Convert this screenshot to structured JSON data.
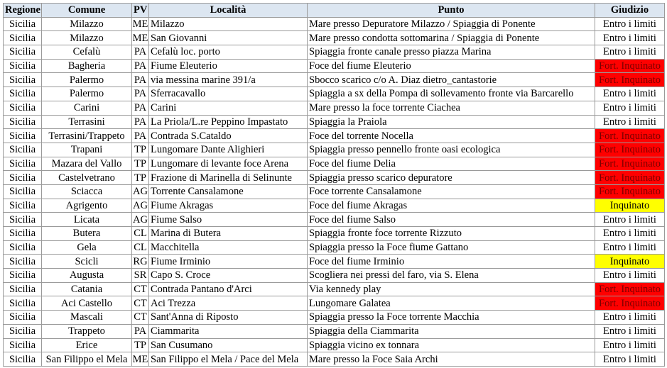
{
  "headers": [
    "Regione",
    "Comune",
    "PV",
    "Località",
    "Punto",
    "Giudizio"
  ],
  "colors": {
    "header_bg": "#dce6f1",
    "fort_inquinato": "#ff0000",
    "inquinato": "#ffff00"
  },
  "rows": [
    [
      "Sicilia",
      "Milazzo",
      "ME",
      "Milazzo",
      "Mare presso Depuratore Milazzo / Spiaggia di Ponente",
      "Entro i limiti"
    ],
    [
      "Sicilia",
      "Milazzo",
      "ME",
      "San Giovanni",
      "Mare presso condotta sottomarina / Spiaggia di Ponente",
      "Entro i limiti"
    ],
    [
      "Sicilia",
      "Cefalù",
      "PA",
      "Cefalù loc. porto",
      "Spiaggia fronte canale presso piazza Marina",
      "Entro i limiti"
    ],
    [
      "Sicilia",
      "Bagheria",
      "PA",
      "Fiume Eleuterio",
      "Foce del fiume Eleuterio",
      "Fort. Inquinato"
    ],
    [
      "Sicilia",
      "Palermo",
      "PA",
      "via messina marine 391/a",
      "Sbocco scarico c/o A. Diaz dietro_cantastorie",
      "Fort. Inquinato"
    ],
    [
      "Sicilia",
      "Palermo",
      "PA",
      "Sferracavallo",
      "Spiaggia a sx della Pompa di sollevamento fronte via Barcarello",
      "Entro i limiti"
    ],
    [
      "Sicilia",
      "Carini",
      "PA",
      "Carini",
      "Mare presso la foce torrente Ciachea",
      "Entro i limiti"
    ],
    [
      "Sicilia",
      "Terrasini",
      "PA",
      "La Priola/L.re Peppino Impastato",
      "Spiaggia la Praiola",
      "Entro i limiti"
    ],
    [
      "Sicilia",
      "Terrasini/Trappeto",
      "PA",
      "Contrada S.Cataldo",
      "Foce del torrente Nocella",
      "Fort. Inquinato"
    ],
    [
      "Sicilia",
      "Trapani",
      "TP",
      "Lungomare Dante Alighieri",
      "Spiaggia presso pennello fronte oasi ecologica",
      "Fort. Inquinato"
    ],
    [
      "Sicilia",
      "Mazara del Vallo",
      "TP",
      "Lungomare di levante foce Arena",
      "Foce del fiume Delia",
      "Fort. Inquinato"
    ],
    [
      "Sicilia",
      "Castelvetrano",
      "TP",
      "Frazione di Marinella di Selinunte",
      "Spiaggia presso scarico depuratore",
      "Fort. Inquinato"
    ],
    [
      "Sicilia",
      "Sciacca",
      "AG",
      "Torrente Cansalamone",
      "Foce torrente Cansalamone",
      "Fort. Inquinato"
    ],
    [
      "Sicilia",
      "Agrigento",
      "AG",
      "Fiume Akragas",
      "Foce del fiume Akragas",
      "Inquinato"
    ],
    [
      "Sicilia",
      "Licata",
      "AG",
      "Fiume Salso",
      "Foce del fiume Salso",
      "Entro i limiti"
    ],
    [
      "Sicilia",
      "Butera",
      "CL",
      "Marina di Butera",
      "Spiaggia fronte foce torrente Rizzuto",
      "Entro i limiti"
    ],
    [
      "Sicilia",
      "Gela",
      "CL",
      "Macchitella",
      "Spiaggia presso la Foce fiume Gattano",
      "Entro i limiti"
    ],
    [
      "Sicilia",
      "Scicli",
      "RG",
      "Fiume Irminio",
      "Foce del fiume Irminio",
      "Inquinato"
    ],
    [
      "Sicilia",
      "Augusta",
      "SR",
      "Capo S. Croce",
      "Scogliera nei pressi del faro, via S. Elena",
      "Entro i limiti"
    ],
    [
      "Sicilia",
      "Catania",
      "CT",
      "Contrada Pantano d'Arci",
      "Via kennedy play",
      "Fort. Inquinato"
    ],
    [
      "Sicilia",
      "Aci Castello",
      "CT",
      "Aci Trezza",
      "Lungomare Galatea",
      "Fort. Inquinato"
    ],
    [
      "Sicilia",
      "Mascali",
      "CT",
      "Sant'Anna di Riposto",
      "Spiaggia presso la Foce torrente Macchia",
      "Entro i limiti"
    ],
    [
      "Sicilia",
      "Trappeto",
      "PA",
      "Ciammarita",
      "Spiaggia della Ciammarita",
      "Entro i limiti"
    ],
    [
      "Sicilia",
      "Erice",
      "TP",
      "San Cusumano",
      "Spiaggia vicino ex tonnara",
      "Entro i limiti"
    ],
    [
      "Sicilia",
      "San Filippo el Mela",
      "ME",
      "San Filippo el Mela / Pace del Mela",
      "Mare presso la Foce Saia Archi",
      "Entro i limiti"
    ]
  ]
}
